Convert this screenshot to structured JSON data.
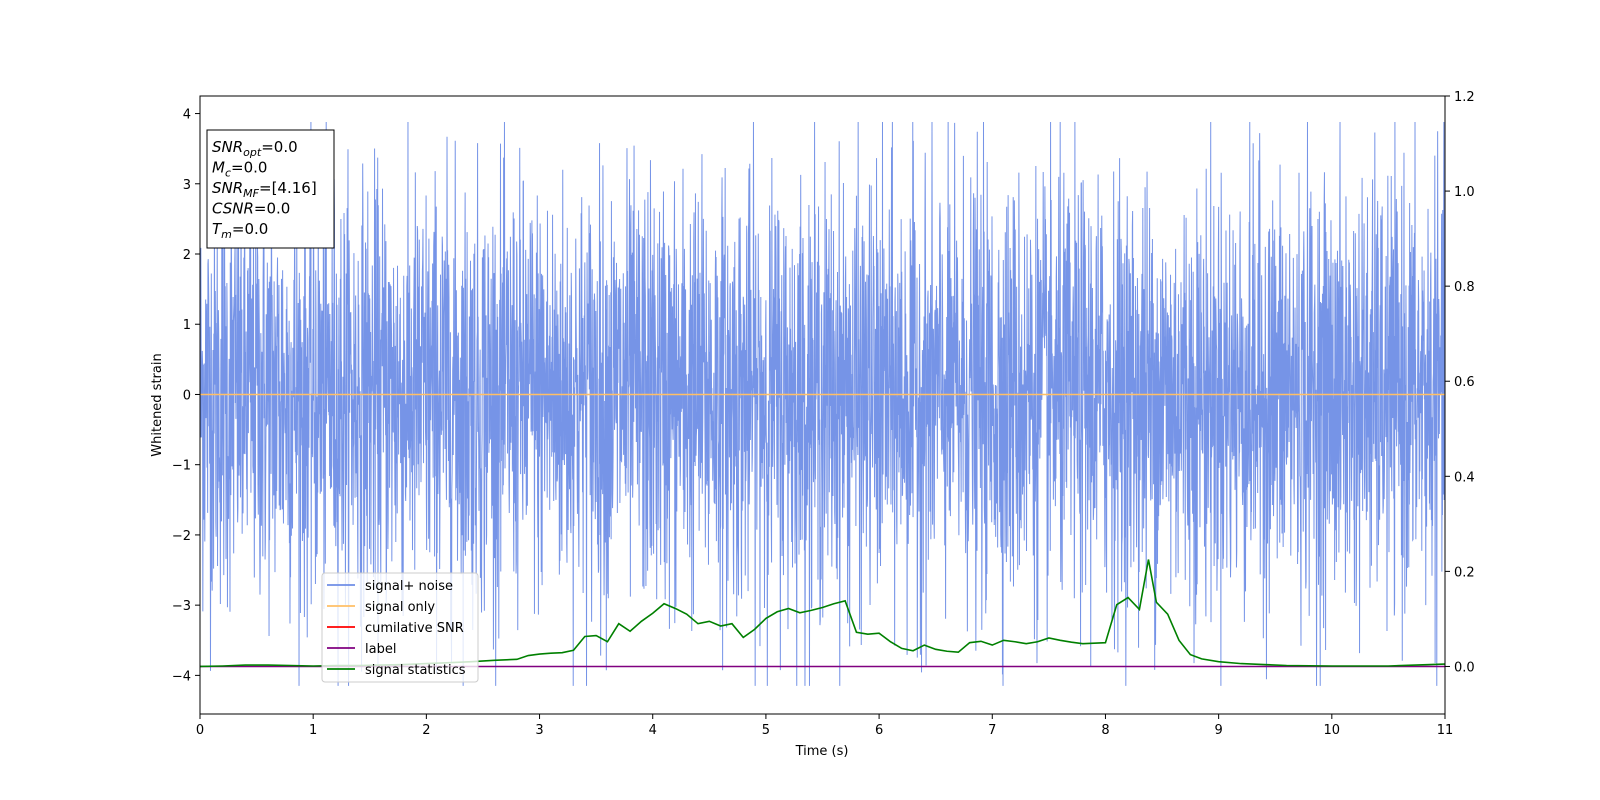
{
  "chart_data": {
    "type": "line",
    "title": "",
    "xlabel": "Time (s)",
    "ylabel": "Whitened strain",
    "xlim": [
      0,
      11
    ],
    "ylim_left": [
      -4.55,
      4.25
    ],
    "ylim_right": [
      -0.1,
      1.2
    ],
    "x_ticks": [
      "0",
      "1",
      "2",
      "3",
      "4",
      "5",
      "6",
      "7",
      "8",
      "9",
      "10",
      "11"
    ],
    "y_ticks_left": [
      "4",
      "3",
      "2",
      "1",
      "0",
      "−1",
      "−2",
      "−3",
      "−4"
    ],
    "y_ticks_right": [
      "1.2",
      "1.0",
      "0.8",
      "0.6",
      "0.4",
      "0.2",
      "0.0"
    ],
    "grid": false,
    "legend_position": "lower-left",
    "info_box": {
      "lines": [
        {
          "main": "SNR",
          "sub": "opt",
          "value": "=0.0"
        },
        {
          "main": "M",
          "sub": "c",
          "value": "=0.0"
        },
        {
          "main": "SNR",
          "sub": "MF",
          "value": "=[4.16]"
        },
        {
          "main": "CSNR",
          "sub": "",
          "value": "=0.0"
        },
        {
          "main": "T",
          "sub": "m",
          "value": "=0.0"
        }
      ]
    },
    "series": [
      {
        "name": "signal+ noise",
        "color": "#6f8ee6",
        "axis": "left",
        "kind": "whitened-noise",
        "approx_range": [
          -4.15,
          3.88
        ],
        "typical_envelope": 2.0
      },
      {
        "name": "signal only",
        "color": "#ffbf66",
        "axis": "left",
        "x": [
          0,
          11
        ],
        "y": [
          0,
          0
        ]
      },
      {
        "name": "cumilative SNR",
        "color": "#ff0000",
        "axis": "right",
        "x": [],
        "y": []
      },
      {
        "name": "label",
        "color": "#800080",
        "axis": "right",
        "x": [
          0,
          11
        ],
        "y": [
          0,
          0
        ]
      },
      {
        "name": "signal statistics",
        "color": "#008000",
        "axis": "right",
        "x": [
          0.0,
          0.2,
          0.4,
          0.6,
          0.8,
          1.0,
          1.2,
          1.4,
          1.6,
          1.8,
          2.0,
          2.2,
          2.4,
          2.6,
          2.8,
          2.9,
          3.0,
          3.1,
          3.2,
          3.3,
          3.4,
          3.5,
          3.6,
          3.7,
          3.8,
          3.9,
          4.0,
          4.1,
          4.2,
          4.3,
          4.4,
          4.5,
          4.6,
          4.7,
          4.8,
          4.9,
          5.0,
          5.1,
          5.2,
          5.3,
          5.4,
          5.5,
          5.6,
          5.7,
          5.8,
          5.9,
          6.0,
          6.1,
          6.2,
          6.3,
          6.4,
          6.5,
          6.6,
          6.7,
          6.8,
          6.9,
          7.0,
          7.1,
          7.2,
          7.3,
          7.4,
          7.5,
          7.6,
          7.7,
          7.8,
          7.9,
          8.0,
          8.1,
          8.2,
          8.3,
          8.38,
          8.45,
          8.55,
          8.65,
          8.75,
          8.85,
          9.0,
          9.2,
          9.4,
          9.6,
          10.0,
          10.5,
          11.0
        ],
        "y": [
          0.0,
          0.001,
          0.003,
          0.003,
          0.002,
          0.001,
          0.002,
          0.002,
          0.003,
          0.004,
          0.006,
          0.008,
          0.01,
          0.013,
          0.015,
          0.023,
          0.026,
          0.028,
          0.029,
          0.034,
          0.063,
          0.065,
          0.052,
          0.09,
          0.074,
          0.095,
          0.112,
          0.132,
          0.122,
          0.11,
          0.09,
          0.095,
          0.085,
          0.09,
          0.061,
          0.078,
          0.101,
          0.115,
          0.122,
          0.113,
          0.118,
          0.124,
          0.132,
          0.138,
          0.072,
          0.068,
          0.07,
          0.052,
          0.038,
          0.033,
          0.045,
          0.036,
          0.032,
          0.03,
          0.05,
          0.053,
          0.045,
          0.055,
          0.052,
          0.048,
          0.052,
          0.06,
          0.055,
          0.051,
          0.048,
          0.049,
          0.05,
          0.13,
          0.145,
          0.12,
          0.225,
          0.135,
          0.11,
          0.055,
          0.025,
          0.016,
          0.01,
          0.006,
          0.004,
          0.002,
          0.001,
          0.001,
          0.005
        ]
      }
    ]
  }
}
